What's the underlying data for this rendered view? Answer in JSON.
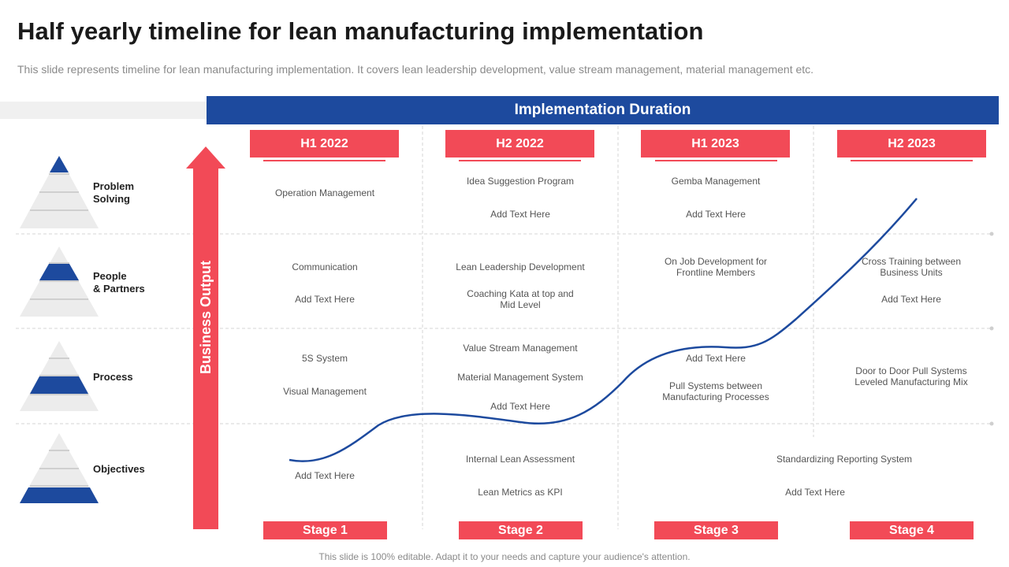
{
  "title": "Half yearly timeline for lean manufacturing implementation",
  "subtitle": "This slide represents timeline for lean manufacturing implementation. It covers lean leadership development, value stream management, material management etc.",
  "header": "Implementation Duration",
  "axis_label": "Business Output",
  "periods": [
    "H1 2022",
    "H2 2022",
    "H1 2023",
    "H2 2023"
  ],
  "stages": [
    "Stage 1",
    "Stage 2",
    "Stage 3",
    "Stage 4"
  ],
  "rows": [
    {
      "label": "Problem\nSolving"
    },
    {
      "label": "People\n& Partners"
    },
    {
      "label": "Process"
    },
    {
      "label": "Objectives"
    }
  ],
  "cells": {
    "r1": {
      "c1": [
        "Operation Management"
      ],
      "c2": [
        "Idea Suggestion Program",
        "Add Text Here"
      ],
      "c3": [
        "Gemba Management",
        "Add Text Here"
      ]
    },
    "r2": {
      "c1": [
        "Communication",
        "Add Text Here"
      ],
      "c2": [
        "Lean Leadership Development",
        "Coaching Kata at top and\nMid Level"
      ],
      "c3": [
        "On Job Development for\nFrontline Members"
      ],
      "c4": [
        "Cross Training between\nBusiness Units",
        "Add Text Here"
      ]
    },
    "r3": {
      "c1": [
        "5S System",
        "Visual Management"
      ],
      "c2": [
        "Value Stream Management",
        "Material Management System",
        "Add Text Here"
      ],
      "c3": [
        "Add Text Here",
        "Pull Systems between\nManufacturing Processes"
      ],
      "c4": [
        "Door to Door Pull Systems\nLeveled Manufacturing Mix"
      ]
    },
    "r4": {
      "c1": [
        "Add Text Here"
      ],
      "c2": [
        "Internal Lean Assessment",
        "Lean Metrics as KPI"
      ],
      "c34": [
        "Standardizing Reporting System",
        "Add Text Here"
      ]
    }
  },
  "footer": "This slide is 100% editable. Adapt it to your needs and capture your audience's attention.",
  "colors": {
    "blue": "#1d4a9e",
    "red": "#f24a57",
    "grey": "#e6e6e6"
  }
}
